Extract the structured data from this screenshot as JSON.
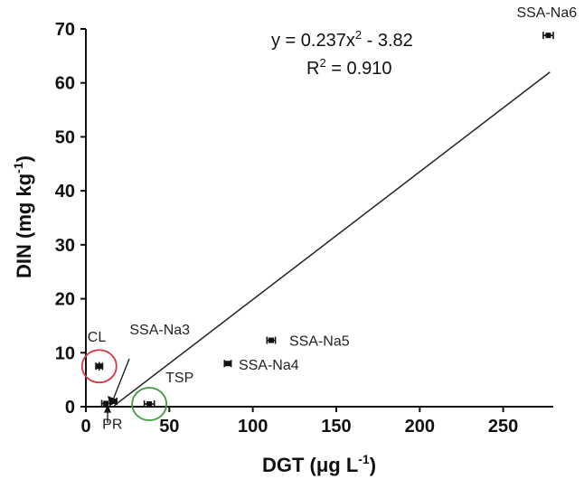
{
  "chart_data": {
    "type": "scatter",
    "xlabel": "DGT (μg L",
    "xlabel_sup": "-1",
    "xlabel_tail": ")",
    "ylabel": "DIN (mg kg",
    "ylabel_sup": "-1",
    "ylabel_tail": ")",
    "xlim": [
      0,
      280
    ],
    "ylim": [
      0,
      70
    ],
    "xticks": [
      0,
      50,
      100,
      150,
      200,
      250
    ],
    "yticks": [
      0,
      10,
      20,
      30,
      40,
      50,
      60,
      70
    ],
    "grid": false,
    "points": [
      {
        "label": "CL",
        "x": 8,
        "y": 7.5,
        "xerr": 2,
        "yerr": 0.8
      },
      {
        "label": "PR",
        "x": 12,
        "y": 0.6,
        "xerr": 2.5,
        "yerr": 0.3
      },
      {
        "label": "SSA-Na3",
        "x": 17,
        "y": 1.0,
        "xerr": 1.5,
        "yerr": 0.2
      },
      {
        "label": "TSP",
        "x": 38,
        "y": 0.5,
        "xerr": 3,
        "yerr": 0.2
      },
      {
        "label": "SSA-Na4",
        "x": 85,
        "y": 8.0,
        "xerr": 2,
        "yerr": 0.4
      },
      {
        "label": "SSA-Na5",
        "x": 111,
        "y": 12.3,
        "xerr": 2.5,
        "yerr": 0.4
      },
      {
        "label": "SSA-Na6",
        "x": 277,
        "y": 68.8,
        "xerr": 3,
        "yerr": 0.4
      }
    ],
    "fit_line": {
      "x": [
        17,
        278
      ],
      "y": [
        0.2,
        62
      ]
    },
    "equation_line1": "y = 0.237x",
    "equation_sup": "2",
    "equation_line1_tail": " - 3.82",
    "equation_line2": "R",
    "equation_line2_sup": "2",
    "equation_line2_tail": " = 0.910",
    "highlight_circles": [
      {
        "target": "CL",
        "color": "#d9363e"
      },
      {
        "target": "TSP",
        "color": "#3f9a3f"
      }
    ]
  }
}
